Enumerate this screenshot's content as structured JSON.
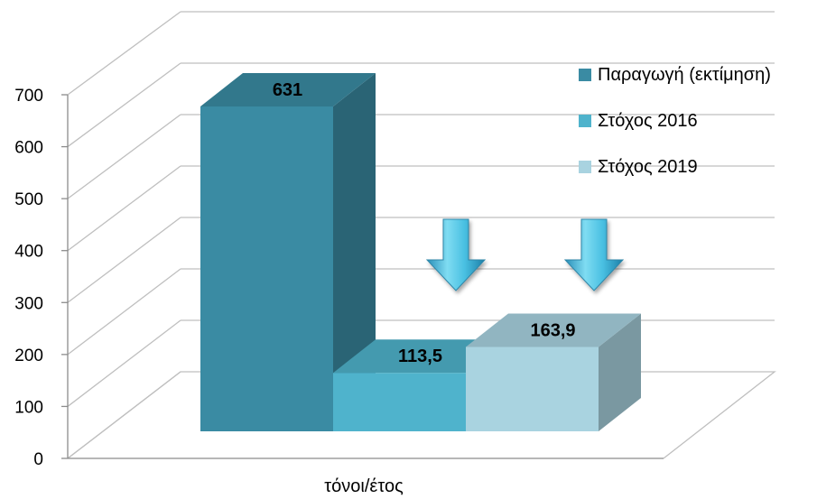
{
  "chart_data": {
    "type": "bar",
    "categories": [
      "τόνοι/έτος"
    ],
    "series": [
      {
        "name": "Παραγωγή (εκτίμηση)",
        "values": [
          631
        ],
        "label": "631",
        "color": "#3a8ba3"
      },
      {
        "name": "Στόχος 2016",
        "values": [
          113.5
        ],
        "label": "113,5",
        "color": "#4fb3cc"
      },
      {
        "name": "Στόχος 2019",
        "values": [
          163.9
        ],
        "label": "163,9",
        "color": "#a9d3e0"
      }
    ],
    "ylim": [
      0,
      700
    ],
    "yticks": [
      "0",
      "100",
      "200",
      "300",
      "400",
      "500",
      "600",
      "700"
    ],
    "grid": true,
    "legend_position": "right",
    "decorations": [
      "down-arrow-icon",
      "down-arrow-icon"
    ]
  }
}
